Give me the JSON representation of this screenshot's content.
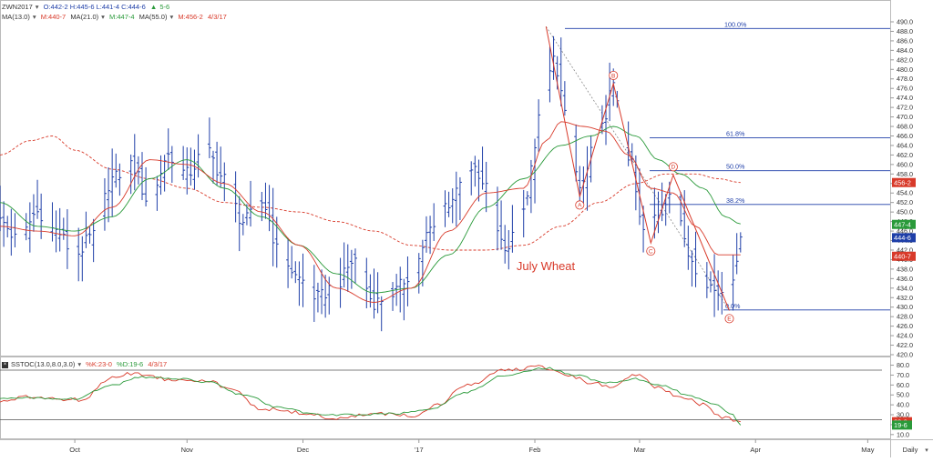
{
  "header": {
    "symbol": "ZWN2017",
    "ohlc": "O:442-2 H:445-6 L:441-4 C:444-6",
    "change": "5-6",
    "ma13": "MA(13.0)",
    "ma13_value": "M:440-7",
    "ma21": "MA(21.0)",
    "ma21_value": "M:447-4",
    "ma55": "MA(55.0)",
    "ma55_value": "M:456-2",
    "date": "4/3/17"
  },
  "stoch_header": {
    "close_glyph": "×",
    "name": "SSTOC(13.0,8.0,3.0)",
    "k_value": "%K:23-0",
    "d_value": "%D:19-6",
    "date": "4/3/17"
  },
  "colors": {
    "price_bars": "#1f3fa8",
    "ma13": "#d83a2a",
    "ma21": "#2a9a3a",
    "ma55": "#d83a2a",
    "fib": "#1f3fa8",
    "pattern": "#d83a2a",
    "trendline": "#888888",
    "stoch_k": "#d83a2a",
    "stoch_d": "#2a9a3a"
  },
  "chart_data": [
    {
      "type": "ohlc",
      "title": "",
      "annotation": "July Wheat",
      "ylim": [
        420,
        490
      ],
      "y_ticks": [
        "490.0",
        "488.0",
        "486.0",
        "484.0",
        "482.0",
        "480.0",
        "478.0",
        "476.0",
        "474.0",
        "472.0",
        "470.0",
        "468.0",
        "466.0",
        "464.0",
        "462.0",
        "460.0",
        "458.0",
        "456.0",
        "454.0",
        "452.0",
        "450.0",
        "448.0",
        "446.0",
        "444.0",
        "442.0",
        "440.0",
        "438.0",
        "436.0",
        "434.0",
        "432.0",
        "430.0",
        "428.0",
        "426.0",
        "424.0",
        "422.0",
        "420.0"
      ],
      "x_labels": [
        "Oct",
        "Nov",
        "Dec",
        "'17",
        "Feb",
        "Mar",
        "Apr",
        "May"
      ],
      "x_label_days": [
        20,
        50,
        81,
        112,
        143,
        171,
        202,
        232
      ],
      "time_range_days": [
        0,
        238
      ],
      "interval_label": "Daily",
      "fib_levels": [
        {
          "label": "100.0%",
          "value": 488.6
        },
        {
          "label": "61.8%",
          "value": 465.6
        },
        {
          "label": "50.0%",
          "value": 458.7
        },
        {
          "label": "38.2%",
          "value": 451.6
        },
        {
          "label": "0.0%",
          "value": 429.4
        }
      ],
      "pattern_points": [
        {
          "label": "A",
          "day": 155,
          "value": 453.2
        },
        {
          "label": "B",
          "day": 164,
          "value": 477.0
        },
        {
          "label": "C",
          "day": 174,
          "value": 443.5
        },
        {
          "label": "D",
          "day": 180,
          "value": 457.8
        },
        {
          "label": "E",
          "day": 195,
          "value": 429.3
        }
      ],
      "pattern_peak": {
        "day": 146,
        "value": 489.0
      },
      "price_tags": [
        {
          "value": 456.2,
          "label": "456-2",
          "color": "#d83a2a"
        },
        {
          "value": 447.4,
          "label": "447-4",
          "color": "#2a9a3a"
        },
        {
          "value": 444.6,
          "label": "444-6",
          "color": "#1f3fa8"
        },
        {
          "value": 440.7,
          "label": "440-7",
          "color": "#d83a2a"
        }
      ],
      "close_anchors": [
        [
          0,
          448
        ],
        [
          5,
          444
        ],
        [
          10,
          450
        ],
        [
          15,
          446
        ],
        [
          20,
          441
        ],
        [
          25,
          445
        ],
        [
          30,
          457
        ],
        [
          35,
          460
        ],
        [
          40,
          452
        ],
        [
          45,
          462
        ],
        [
          50,
          458
        ],
        [
          55,
          463
        ],
        [
          60,
          457
        ],
        [
          65,
          448
        ],
        [
          70,
          452
        ],
        [
          75,
          441
        ],
        [
          80,
          436
        ],
        [
          85,
          432
        ],
        [
          90,
          435
        ],
        [
          95,
          440
        ],
        [
          100,
          431
        ],
        [
          105,
          433
        ],
        [
          110,
          437
        ],
        [
          115,
          446
        ],
        [
          120,
          452
        ],
        [
          125,
          460
        ],
        [
          130,
          455
        ],
        [
          135,
          442
        ],
        [
          140,
          452
        ],
        [
          145,
          471
        ],
        [
          148,
          482
        ],
        [
          152,
          468
        ],
        [
          155,
          455
        ],
        [
          160,
          466
        ],
        [
          164,
          476
        ],
        [
          168,
          462
        ],
        [
          172,
          446
        ],
        [
          176,
          449
        ],
        [
          180,
          456
        ],
        [
          184,
          441
        ],
        [
          188,
          436
        ],
        [
          192,
          433
        ],
        [
          196,
          437
        ],
        [
          198,
          444.75
        ]
      ],
      "ma13_anchors": [
        [
          0,
          447
        ],
        [
          10,
          446
        ],
        [
          20,
          445
        ],
        [
          30,
          451
        ],
        [
          40,
          461
        ],
        [
          50,
          460
        ],
        [
          60,
          456
        ],
        [
          70,
          450
        ],
        [
          80,
          443
        ],
        [
          90,
          434
        ],
        [
          100,
          431
        ],
        [
          110,
          434
        ],
        [
          120,
          446
        ],
        [
          130,
          454
        ],
        [
          140,
          455
        ],
        [
          146,
          465
        ],
        [
          150,
          469
        ],
        [
          156,
          468
        ],
        [
          162,
          467
        ],
        [
          168,
          462
        ],
        [
          174,
          455
        ],
        [
          180,
          454
        ],
        [
          186,
          447
        ],
        [
          192,
          441
        ],
        [
          198,
          441
        ]
      ],
      "ma21_anchors": [
        [
          0,
          452
        ],
        [
          10,
          447
        ],
        [
          20,
          446
        ],
        [
          30,
          449
        ],
        [
          40,
          457
        ],
        [
          50,
          461
        ],
        [
          60,
          455
        ],
        [
          70,
          449
        ],
        [
          80,
          443
        ],
        [
          90,
          437
        ],
        [
          100,
          433
        ],
        [
          110,
          434
        ],
        [
          120,
          441
        ],
        [
          130,
          451
        ],
        [
          140,
          457
        ],
        [
          150,
          464
        ],
        [
          158,
          466
        ],
        [
          164,
          468
        ],
        [
          170,
          466
        ],
        [
          176,
          461
        ],
        [
          182,
          458
        ],
        [
          188,
          455
        ],
        [
          194,
          449
        ],
        [
          198,
          447.5
        ]
      ],
      "ma55_anchors": [
        [
          0,
          462
        ],
        [
          8,
          465
        ],
        [
          14,
          466
        ],
        [
          20,
          463
        ],
        [
          30,
          459
        ],
        [
          40,
          457
        ],
        [
          50,
          455
        ],
        [
          60,
          452
        ],
        [
          70,
          451
        ],
        [
          80,
          450
        ],
        [
          90,
          448
        ],
        [
          100,
          446
        ],
        [
          110,
          443
        ],
        [
          120,
          442
        ],
        [
          130,
          442
        ],
        [
          140,
          443
        ],
        [
          150,
          447
        ],
        [
          160,
          452
        ],
        [
          170,
          456
        ],
        [
          178,
          458
        ],
        [
          186,
          458
        ],
        [
          192,
          457
        ],
        [
          198,
          456.2
        ]
      ]
    },
    {
      "type": "line",
      "title": "",
      "ylim": [
        8,
        86
      ],
      "y_ticks": [
        "80.0",
        "70.0",
        "60.0",
        "50.0",
        "40.0",
        "30.0",
        "20.0",
        "10.0"
      ],
      "ref_lines": [
        75,
        25
      ],
      "value_tags": [
        {
          "value": 23.0,
          "label": "23-0",
          "color": "#d83a2a"
        },
        {
          "value": 19.6,
          "label": "19-6",
          "color": "#2a9a3a"
        }
      ],
      "series": [
        {
          "name": "%K",
          "anchors": [
            [
              0,
              43
            ],
            [
              8,
              48
            ],
            [
              15,
              46
            ],
            [
              22,
              45
            ],
            [
              30,
              68
            ],
            [
              36,
              72
            ],
            [
              45,
              66
            ],
            [
              55,
              65
            ],
            [
              62,
              55
            ],
            [
              70,
              36
            ],
            [
              80,
              32
            ],
            [
              90,
              26
            ],
            [
              100,
              31
            ],
            [
              110,
              29
            ],
            [
              117,
              40
            ],
            [
              125,
              60
            ],
            [
              135,
              75
            ],
            [
              145,
              78
            ],
            [
              152,
              70
            ],
            [
              158,
              62
            ],
            [
              164,
              58
            ],
            [
              170,
              70
            ],
            [
              176,
              58
            ],
            [
              182,
              48
            ],
            [
              188,
              40
            ],
            [
              193,
              28
            ],
            [
              198,
              23
            ]
          ]
        },
        {
          "name": "%D",
          "anchors": [
            [
              0,
              46
            ],
            [
              10,
              47
            ],
            [
              20,
              46
            ],
            [
              30,
              60
            ],
            [
              38,
              68
            ],
            [
              48,
              66
            ],
            [
              56,
              63
            ],
            [
              65,
              50
            ],
            [
              75,
              37
            ],
            [
              85,
              30
            ],
            [
              95,
              30
            ],
            [
              105,
              31
            ],
            [
              115,
              35
            ],
            [
              124,
              52
            ],
            [
              135,
              70
            ],
            [
              146,
              77
            ],
            [
              154,
              70
            ],
            [
              162,
              62
            ],
            [
              170,
              66
            ],
            [
              177,
              60
            ],
            [
              184,
              50
            ],
            [
              190,
              42
            ],
            [
              196,
              30
            ],
            [
              198,
              19.6
            ]
          ]
        }
      ]
    }
  ]
}
